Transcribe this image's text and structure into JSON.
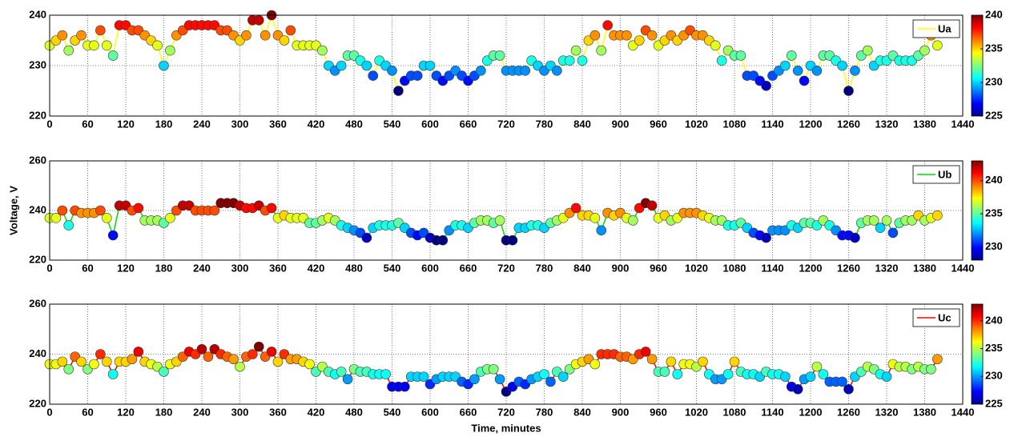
{
  "chart_data": [
    {
      "type": "scatter",
      "colormap": "jet",
      "grid": true,
      "legend": "upper right",
      "x": [
        0,
        10,
        20,
        30,
        40,
        50,
        60,
        70,
        80,
        90,
        100,
        110,
        120,
        130,
        140,
        150,
        160,
        170,
        180,
        190,
        200,
        210,
        220,
        230,
        240,
        250,
        260,
        270,
        280,
        290,
        300,
        310,
        320,
        330,
        340,
        350,
        360,
        370,
        380,
        390,
        400,
        410,
        420,
        430,
        440,
        450,
        460,
        470,
        480,
        490,
        500,
        510,
        520,
        530,
        540,
        550,
        560,
        570,
        580,
        590,
        600,
        610,
        620,
        630,
        640,
        650,
        660,
        670,
        680,
        690,
        700,
        710,
        720,
        730,
        740,
        750,
        760,
        770,
        780,
        790,
        800,
        810,
        820,
        830,
        840,
        850,
        860,
        870,
        880,
        890,
        900,
        910,
        920,
        930,
        940,
        950,
        960,
        970,
        980,
        990,
        1000,
        1010,
        1020,
        1030,
        1040,
        1050,
        1060,
        1070,
        1080,
        1090,
        1100,
        1110,
        1120,
        1130,
        1140,
        1150,
        1160,
        1170,
        1180,
        1190,
        1200,
        1210,
        1220,
        1230,
        1240,
        1250,
        1260,
        1270,
        1280,
        1290,
        1300,
        1310,
        1320,
        1330,
        1340,
        1350,
        1360,
        1370,
        1380,
        1390,
        1400
      ],
      "series": [
        {
          "name": "Ua",
          "color": "#ffff00",
          "values": [
            234,
            235,
            236,
            233,
            235,
            236,
            234,
            234,
            237,
            234,
            232,
            238,
            238,
            237,
            237,
            236,
            235,
            234,
            230,
            233,
            236,
            237,
            238,
            238,
            238,
            238,
            238,
            237,
            237,
            236,
            235,
            236,
            239,
            239,
            236,
            240,
            236,
            235,
            237,
            234,
            234,
            234,
            234,
            233,
            230,
            229,
            230,
            232,
            232,
            231,
            230,
            228,
            231,
            230,
            229,
            225,
            227,
            228,
            228,
            230,
            230,
            228,
            227,
            228,
            229,
            228,
            227,
            228,
            229,
            231,
            232,
            232,
            229,
            229,
            229,
            229,
            231,
            230,
            229,
            230,
            229,
            231,
            231,
            233,
            231,
            235,
            236,
            233,
            238,
            236,
            236,
            236,
            234,
            235,
            237,
            236,
            234,
            235,
            236,
            235,
            236,
            237,
            236,
            236,
            235,
            234,
            231,
            233,
            232,
            232,
            228,
            228,
            227,
            226,
            228,
            229,
            230,
            232,
            229,
            227,
            230,
            229,
            232,
            232,
            231,
            230,
            225,
            229,
            232,
            233,
            230,
            231,
            231,
            232,
            231,
            231,
            231,
            232,
            233,
            236,
            234
          ]
        }
      ],
      "xlim": [
        0,
        1440
      ],
      "xticks": [
        0,
        60,
        120,
        180,
        240,
        300,
        360,
        420,
        480,
        540,
        600,
        660,
        720,
        780,
        840,
        900,
        960,
        1020,
        1080,
        1140,
        1200,
        1260,
        1320,
        1380,
        1440
      ],
      "ylim": [
        220,
        240
      ],
      "yticks": [
        220,
        230,
        240
      ],
      "clim": [
        225,
        240
      ],
      "cticks": [
        225,
        230,
        235,
        240
      ]
    },
    {
      "type": "scatter",
      "colormap": "jet",
      "grid": true,
      "legend": "upper right",
      "y_label": "Voltage, V",
      "x": [
        0,
        10,
        20,
        30,
        40,
        50,
        60,
        70,
        80,
        90,
        100,
        110,
        120,
        130,
        140,
        150,
        160,
        170,
        180,
        190,
        200,
        210,
        220,
        230,
        240,
        250,
        260,
        270,
        280,
        290,
        300,
        310,
        320,
        330,
        340,
        350,
        360,
        370,
        380,
        390,
        400,
        410,
        420,
        430,
        440,
        450,
        460,
        470,
        480,
        490,
        500,
        510,
        520,
        530,
        540,
        550,
        560,
        570,
        580,
        590,
        600,
        610,
        620,
        630,
        640,
        650,
        660,
        670,
        680,
        690,
        700,
        710,
        720,
        730,
        740,
        750,
        760,
        770,
        780,
        790,
        800,
        810,
        820,
        830,
        840,
        850,
        860,
        870,
        880,
        890,
        900,
        910,
        920,
        930,
        940,
        950,
        960,
        970,
        980,
        990,
        1000,
        1010,
        1020,
        1030,
        1040,
        1050,
        1060,
        1070,
        1080,
        1090,
        1100,
        1110,
        1120,
        1130,
        1140,
        1150,
        1160,
        1170,
        1180,
        1190,
        1200,
        1210,
        1220,
        1230,
        1240,
        1250,
        1260,
        1270,
        1280,
        1290,
        1300,
        1310,
        1320,
        1330,
        1340,
        1350,
        1360,
        1370,
        1380,
        1390,
        1400
      ],
      "series": [
        {
          "name": "Ub",
          "color": "#00dd00",
          "values": [
            237,
            237,
            240,
            234,
            240,
            239,
            239,
            239,
            240,
            237,
            230,
            242,
            242,
            240,
            241,
            236,
            236,
            236,
            235,
            237,
            240,
            242,
            242,
            240,
            240,
            240,
            240,
            243,
            243,
            243,
            242,
            241,
            241,
            242,
            240,
            241,
            237,
            238,
            237,
            237,
            237,
            235,
            235,
            236,
            237,
            236,
            234,
            233,
            232,
            231,
            229,
            233,
            234,
            234,
            234,
            235,
            233,
            231,
            230,
            231,
            229,
            228,
            228,
            232,
            234,
            234,
            233,
            235,
            236,
            236,
            235,
            236,
            228,
            228,
            233,
            233,
            234,
            234,
            233,
            235,
            236,
            237,
            239,
            241,
            238,
            238,
            237,
            232,
            239,
            238,
            239,
            237,
            236,
            241,
            243,
            242,
            237,
            238,
            236,
            237,
            239,
            239,
            239,
            238,
            237,
            236,
            236,
            234,
            234,
            235,
            233,
            231,
            230,
            229,
            232,
            232,
            232,
            234,
            233,
            235,
            235,
            234,
            236,
            234,
            232,
            230,
            230,
            229,
            235,
            236,
            236,
            233,
            236,
            231,
            235,
            236,
            236,
            238,
            236,
            237,
            238
          ]
        }
      ],
      "xlim": [
        0,
        1440
      ],
      "xticks": [
        0,
        60,
        120,
        180,
        240,
        300,
        360,
        420,
        480,
        540,
        600,
        660,
        720,
        780,
        840,
        900,
        960,
        1020,
        1080,
        1140,
        1200,
        1260,
        1320,
        1380,
        1440
      ],
      "ylim": [
        220,
        260
      ],
      "yticks": [
        220,
        240,
        260
      ],
      "clim": [
        228,
        243
      ],
      "cticks": [
        230,
        235,
        240
      ]
    },
    {
      "type": "scatter",
      "colormap": "jet",
      "grid": true,
      "legend": "upper right",
      "x_label": "Time, minutes",
      "x": [
        0,
        10,
        20,
        30,
        40,
        50,
        60,
        70,
        80,
        90,
        100,
        110,
        120,
        130,
        140,
        150,
        160,
        170,
        180,
        190,
        200,
        210,
        220,
        230,
        240,
        250,
        260,
        270,
        280,
        290,
        300,
        310,
        320,
        330,
        340,
        350,
        360,
        370,
        380,
        390,
        400,
        410,
        420,
        430,
        440,
        450,
        460,
        470,
        480,
        490,
        500,
        510,
        520,
        530,
        540,
        550,
        560,
        570,
        580,
        590,
        600,
        610,
        620,
        630,
        640,
        650,
        660,
        670,
        680,
        690,
        700,
        710,
        720,
        730,
        740,
        750,
        760,
        770,
        780,
        790,
        800,
        810,
        820,
        830,
        840,
        850,
        860,
        870,
        880,
        890,
        900,
        910,
        920,
        930,
        940,
        950,
        960,
        970,
        980,
        990,
        1000,
        1010,
        1020,
        1030,
        1040,
        1050,
        1060,
        1070,
        1080,
        1090,
        1100,
        1110,
        1120,
        1130,
        1140,
        1150,
        1160,
        1170,
        1180,
        1190,
        1200,
        1210,
        1220,
        1230,
        1240,
        1250,
        1260,
        1270,
        1280,
        1290,
        1300,
        1310,
        1320,
        1330,
        1340,
        1350,
        1360,
        1370,
        1380,
        1390,
        1400
      ],
      "series": [
        {
          "name": "Uc",
          "color": "#ff0000",
          "values": [
            236,
            236,
            237,
            234,
            239,
            237,
            234,
            236,
            240,
            237,
            232,
            237,
            237,
            238,
            241,
            237,
            236,
            235,
            233,
            236,
            237,
            239,
            241,
            240,
            242,
            239,
            242,
            240,
            239,
            238,
            235,
            239,
            240,
            243,
            239,
            241,
            237,
            240,
            238,
            238,
            237,
            236,
            233,
            235,
            233,
            232,
            233,
            230,
            234,
            233,
            233,
            232,
            232,
            232,
            227,
            227,
            227,
            231,
            231,
            231,
            228,
            230,
            231,
            231,
            231,
            229,
            228,
            230,
            233,
            234,
            234,
            230,
            225,
            227,
            229,
            228,
            230,
            231,
            232,
            229,
            233,
            231,
            234,
            236,
            237,
            238,
            236,
            240,
            240,
            240,
            239,
            239,
            238,
            240,
            241,
            238,
            233,
            233,
            237,
            232,
            236,
            236,
            235,
            237,
            232,
            230,
            230,
            232,
            237,
            233,
            232,
            232,
            231,
            233,
            232,
            232,
            231,
            227,
            226,
            230,
            231,
            235,
            232,
            229,
            229,
            229,
            226,
            231,
            233,
            235,
            234,
            232,
            231,
            236,
            235,
            235,
            234,
            235,
            234,
            234,
            238
          ]
        }
      ],
      "xlim": [
        0,
        1440
      ],
      "xticks": [
        0,
        60,
        120,
        180,
        240,
        300,
        360,
        420,
        480,
        540,
        600,
        660,
        720,
        780,
        840,
        900,
        960,
        1020,
        1080,
        1140,
        1200,
        1260,
        1320,
        1380,
        1440
      ],
      "ylim": [
        220,
        260
      ],
      "yticks": [
        220,
        240,
        260
      ],
      "clim": [
        225,
        243
      ],
      "cticks": [
        225,
        230,
        235,
        240
      ]
    }
  ]
}
